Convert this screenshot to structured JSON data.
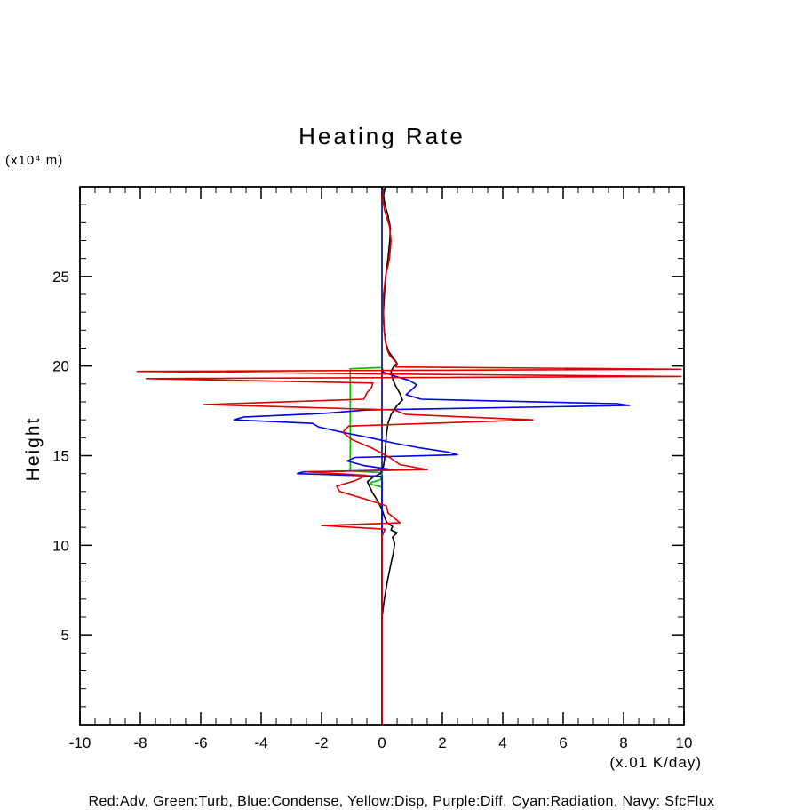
{
  "title": "Heating Rate",
  "axes": {
    "y_label": "Height",
    "y_unit_label": "(x10⁴ m)",
    "x_unit_label": "(x.01 K/day)"
  },
  "legend_text": "Red:Adv, Green:Turb, Blue:Condense, Yellow:Disp, Purple:Diff, Cyan:Radiation, Navy: SfcFlux",
  "chart_data": {
    "type": "line",
    "title": "Heating Rate",
    "xlabel": "(x.01 K/day)",
    "ylabel": "Height (x10^4 m)",
    "xlim": [
      -10,
      10
    ],
    "ylim": [
      0,
      30
    ],
    "x_ticks": [
      -10,
      -8,
      -6,
      -4,
      -2,
      0,
      2,
      4,
      6,
      8,
      10
    ],
    "y_ticks": [
      5,
      10,
      15,
      20,
      25
    ],
    "x_minor_step": 0.5,
    "y_minor_step": 1,
    "grid": false,
    "legend_position": "bottom-caption",
    "frame_color": "#000000",
    "series": [
      {
        "name": "navy-sfcflux",
        "color": "#000088",
        "points": [
          [
            0,
            0
          ],
          [
            0,
            29.9
          ]
        ]
      },
      {
        "name": "green-turb",
        "color": "#00bb00",
        "points": [
          [
            0,
            13.25
          ],
          [
            -0.35,
            13.4
          ],
          [
            -0.38,
            13.5
          ],
          [
            -0.05,
            13.65
          ],
          [
            0,
            14.05
          ],
          [
            -1.05,
            14.15
          ],
          [
            -1.05,
            19.85
          ],
          [
            -0.02,
            19.92
          ]
        ]
      },
      {
        "name": "black-curve",
        "color": "#000000",
        "points": [
          [
            0,
            0
          ],
          [
            0,
            6.0
          ],
          [
            0.08,
            7.0
          ],
          [
            0.18,
            8.0
          ],
          [
            0.3,
            9.0
          ],
          [
            0.38,
            9.6
          ],
          [
            0.42,
            10.1
          ],
          [
            0.35,
            10.45
          ],
          [
            0.5,
            10.7
          ],
          [
            0.3,
            10.85
          ],
          [
            0.35,
            11.05
          ],
          [
            0.15,
            11.3
          ],
          [
            0.08,
            11.6
          ],
          [
            0,
            12.0
          ],
          [
            -0.15,
            12.5
          ],
          [
            -0.3,
            12.9
          ],
          [
            -0.42,
            13.3
          ],
          [
            -0.48,
            13.55
          ],
          [
            -0.3,
            13.8
          ],
          [
            -0.05,
            14.0
          ],
          [
            0.05,
            14.4
          ],
          [
            0.1,
            15.0
          ],
          [
            0.12,
            15.6
          ],
          [
            0.15,
            16.2
          ],
          [
            0.2,
            16.8
          ],
          [
            0.3,
            17.3
          ],
          [
            0.5,
            17.8
          ],
          [
            0.68,
            18.1
          ],
          [
            0.6,
            18.45
          ],
          [
            0.45,
            18.9
          ],
          [
            0.35,
            19.3
          ],
          [
            0.3,
            19.7
          ],
          [
            0.38,
            19.95
          ],
          [
            0.5,
            20.15
          ],
          [
            0.4,
            20.4
          ],
          [
            0.22,
            20.8
          ],
          [
            0.12,
            21.3
          ],
          [
            0.07,
            22.0
          ],
          [
            0.05,
            23.0
          ],
          [
            0.08,
            24.0
          ],
          [
            0.12,
            25.0
          ],
          [
            0.2,
            26.0
          ],
          [
            0.26,
            27.0
          ],
          [
            0.28,
            27.7
          ],
          [
            0.2,
            28.4
          ],
          [
            0.1,
            29.0
          ],
          [
            0.05,
            29.5
          ],
          [
            0.1,
            29.9
          ]
        ]
      },
      {
        "name": "blue-condense",
        "color": "#0000ee",
        "points": [
          [
            0,
            0
          ],
          [
            0,
            13.85
          ],
          [
            -2.8,
            14.0
          ],
          [
            -2.6,
            14.1
          ],
          [
            0.4,
            14.2
          ],
          [
            -0.6,
            14.45
          ],
          [
            -1.15,
            14.7
          ],
          [
            -0.9,
            14.9
          ],
          [
            2.5,
            15.05
          ],
          [
            2.2,
            15.2
          ],
          [
            1.2,
            15.45
          ],
          [
            0.4,
            15.7
          ],
          [
            -0.4,
            16.0
          ],
          [
            -1.3,
            16.3
          ],
          [
            -2.1,
            16.6
          ],
          [
            -2.3,
            16.8
          ],
          [
            -4.9,
            17.0
          ],
          [
            -4.6,
            17.15
          ],
          [
            -2.0,
            17.35
          ],
          [
            -0.5,
            17.55
          ],
          [
            8.2,
            17.8
          ],
          [
            7.8,
            17.9
          ],
          [
            1.3,
            18.15
          ],
          [
            0.8,
            18.4
          ],
          [
            1.0,
            18.7
          ],
          [
            1.15,
            18.95
          ],
          [
            0.9,
            19.2
          ],
          [
            0.4,
            19.45
          ],
          [
            0.05,
            19.65
          ],
          [
            0,
            19.9
          ]
        ]
      },
      {
        "name": "red-adv",
        "color": "#dd0000",
        "points": [
          [
            0,
            0
          ],
          [
            0,
            10.5
          ],
          [
            0.1,
            10.9
          ],
          [
            -2.0,
            11.1
          ],
          [
            0.6,
            11.25
          ],
          [
            0.35,
            11.6
          ],
          [
            0.2,
            11.8
          ],
          [
            0.15,
            12.2
          ],
          [
            -0.6,
            12.6
          ],
          [
            -1.4,
            13.0
          ],
          [
            -1.5,
            13.3
          ],
          [
            -0.9,
            13.6
          ],
          [
            -0.5,
            13.9
          ],
          [
            -2.5,
            14.1
          ],
          [
            1.5,
            14.22
          ],
          [
            0.6,
            14.5
          ],
          [
            0.25,
            14.9
          ],
          [
            -0.3,
            15.4
          ],
          [
            -1.0,
            15.9
          ],
          [
            -1.3,
            16.3
          ],
          [
            -1.1,
            16.65
          ],
          [
            5.0,
            17.0
          ],
          [
            0.8,
            17.3
          ],
          [
            0.4,
            17.55
          ],
          [
            -5.9,
            17.85
          ],
          [
            -0.6,
            18.15
          ],
          [
            -0.5,
            18.5
          ],
          [
            -0.35,
            18.8
          ],
          [
            -0.3,
            19.05
          ],
          [
            -7.8,
            19.3
          ],
          [
            9.9,
            19.42
          ],
          [
            0.3,
            19.55
          ],
          [
            -8.1,
            19.7
          ],
          [
            9.9,
            19.82
          ],
          [
            0.45,
            19.95
          ],
          [
            0.5,
            20.1
          ],
          [
            0.45,
            20.25
          ],
          [
            0.25,
            20.6
          ],
          [
            0.15,
            21.0
          ],
          [
            0.1,
            21.5
          ],
          [
            0.05,
            22.5
          ],
          [
            0.05,
            24.0
          ],
          [
            0.12,
            25.0
          ],
          [
            0.25,
            26.0
          ],
          [
            0.3,
            27.0
          ],
          [
            0.25,
            27.8
          ],
          [
            0.1,
            28.6
          ],
          [
            0.02,
            29.3
          ],
          [
            0.05,
            29.85
          ]
        ]
      }
    ]
  }
}
